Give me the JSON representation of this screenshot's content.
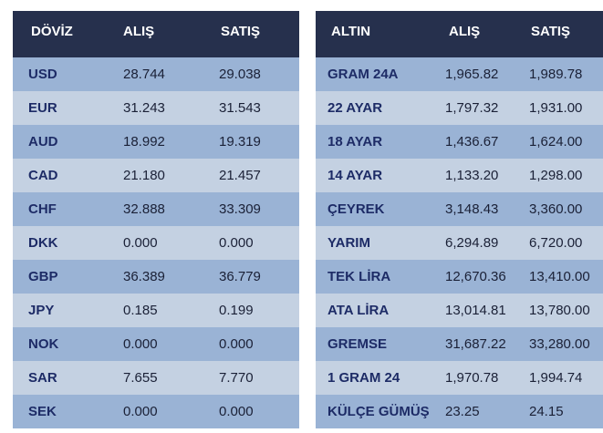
{
  "doviz": {
    "headers": {
      "name": "DÖVİZ",
      "buy": "ALIŞ",
      "sell": "SATIŞ"
    },
    "rows": [
      {
        "code": "USD",
        "buy": "28.744",
        "sell": "29.038"
      },
      {
        "code": "EUR",
        "buy": "31.243",
        "sell": "31.543"
      },
      {
        "code": "AUD",
        "buy": "18.992",
        "sell": "19.319"
      },
      {
        "code": "CAD",
        "buy": "21.180",
        "sell": "21.457"
      },
      {
        "code": "CHF",
        "buy": "32.888",
        "sell": "33.309"
      },
      {
        "code": "DKK",
        "buy": "0.000",
        "sell": "0.000"
      },
      {
        "code": "GBP",
        "buy": "36.389",
        "sell": "36.779"
      },
      {
        "code": "JPY",
        "buy": "0.185",
        "sell": "0.199"
      },
      {
        "code": "NOK",
        "buy": "0.000",
        "sell": "0.000"
      },
      {
        "code": "SAR",
        "buy": "7.655",
        "sell": "7.770"
      },
      {
        "code": "SEK",
        "buy": "0.000",
        "sell": "0.000"
      }
    ]
  },
  "altin": {
    "headers": {
      "name": "ALTIN",
      "buy": "ALIŞ",
      "sell": "SATIŞ"
    },
    "rows": [
      {
        "code": "GRAM 24A",
        "buy": "1,965.82",
        "sell": "1,989.78"
      },
      {
        "code": "22 AYAR",
        "buy": "1,797.32",
        "sell": "1,931.00"
      },
      {
        "code": "18 AYAR",
        "buy": "1,436.67",
        "sell": "1,624.00"
      },
      {
        "code": "14 AYAR",
        "buy": "1,133.20",
        "sell": "1,298.00"
      },
      {
        "code": "ÇEYREK",
        "buy": "3,148.43",
        "sell": "3,360.00"
      },
      {
        "code": "YARIM",
        "buy": "6,294.89",
        "sell": "6,720.00"
      },
      {
        "code": "TEK LİRA",
        "buy": "12,670.36",
        "sell": "13,410.00"
      },
      {
        "code": "ATA LİRA",
        "buy": "13,014.81",
        "sell": "13,780.00"
      },
      {
        "code": "GREMSE",
        "buy": "31,687.22",
        "sell": "33,280.00"
      },
      {
        "code": "1 GRAM 24",
        "buy": "1,970.78",
        "sell": "1,994.74"
      },
      {
        "code": "KÜLÇE GÜMÜŞ",
        "buy": "23.25",
        "sell": "24.15"
      }
    ]
  },
  "colors": {
    "header_bg": "#26304d",
    "row_odd": "#9ab3d5",
    "row_even": "#c4d1e2",
    "code_text": "#1d2b66"
  }
}
